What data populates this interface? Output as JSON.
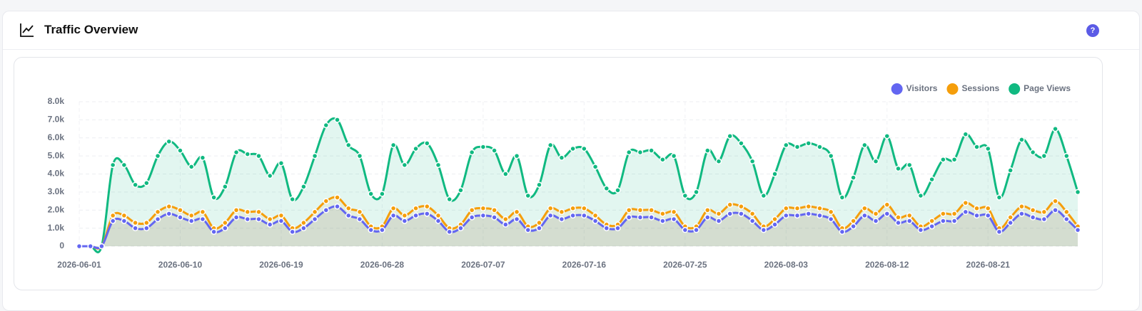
{
  "help_icon": "?",
  "chart_data": {
    "type": "area",
    "title": "Traffic Overview",
    "categories": [
      "2026-06-01",
      null,
      null,
      null,
      null,
      null,
      null,
      null,
      null,
      "2026-06-10",
      null,
      null,
      null,
      null,
      null,
      null,
      null,
      null,
      "2026-06-19",
      null,
      null,
      null,
      null,
      null,
      null,
      null,
      null,
      "2026-06-28",
      null,
      null,
      null,
      null,
      null,
      null,
      null,
      null,
      "2026-07-07",
      null,
      null,
      null,
      null,
      null,
      null,
      null,
      null,
      "2026-07-16",
      null,
      null,
      null,
      null,
      null,
      null,
      null,
      null,
      "2026-07-25",
      null,
      null,
      null,
      null,
      null,
      null,
      null,
      null,
      "2026-08-03",
      null,
      null,
      null,
      null,
      null,
      null,
      null,
      null,
      "2026-08-12",
      null,
      null,
      null,
      null,
      null,
      null,
      null,
      null,
      "2026-08-21",
      null,
      null,
      null,
      null,
      null,
      null,
      null,
      null
    ],
    "series": [
      {
        "name": "Visitors",
        "color": "#6366f1",
        "values": [
          0,
          0,
          0,
          1400,
          1400,
          1000,
          1000,
          1500,
          1800,
          1600,
          1400,
          1500,
          800,
          1000,
          1600,
          1500,
          1500,
          1200,
          1400,
          800,
          1000,
          1500,
          2000,
          2200,
          1700,
          1500,
          900,
          900,
          1700,
          1400,
          1700,
          1800,
          1400,
          800,
          1000,
          1600,
          1700,
          1600,
          1200,
          1500,
          900,
          1000,
          1700,
          1500,
          1700,
          1700,
          1400,
          1000,
          1000,
          1600,
          1600,
          1600,
          1400,
          1500,
          900,
          900,
          1600,
          1400,
          1800,
          1800,
          1400,
          900,
          1200,
          1700,
          1700,
          1800,
          1700,
          1500,
          800,
          1100,
          1700,
          1400,
          1800,
          1300,
          1400,
          900,
          1100,
          1400,
          1400,
          1900,
          1700,
          1700,
          800,
          1300,
          1800,
          1600,
          1500,
          2000,
          1500,
          900
        ]
      },
      {
        "name": "Sessions",
        "color": "#f59e0b",
        "values": [
          0,
          0,
          0,
          1700,
          1700,
          1300,
          1300,
          1900,
          2200,
          2000,
          1700,
          1900,
          1000,
          1300,
          2000,
          1900,
          1900,
          1500,
          1700,
          1000,
          1300,
          1900,
          2500,
          2700,
          2100,
          1900,
          1100,
          1100,
          2100,
          1700,
          2100,
          2200,
          1700,
          1000,
          1200,
          2000,
          2100,
          2000,
          1500,
          1900,
          1100,
          1300,
          2100,
          1900,
          2100,
          2100,
          1700,
          1200,
          1200,
          2000,
          2000,
          2000,
          1800,
          1900,
          1100,
          1100,
          2000,
          1800,
          2300,
          2200,
          1800,
          1100,
          1500,
          2100,
          2100,
          2200,
          2100,
          1900,
          1000,
          1400,
          2100,
          1800,
          2300,
          1600,
          1700,
          1100,
          1400,
          1800,
          1800,
          2400,
          2100,
          2100,
          1000,
          1600,
          2200,
          2000,
          1900,
          2500,
          1900,
          1100
        ]
      },
      {
        "name": "Page Views",
        "color": "#10b981",
        "values": [
          0,
          0,
          0,
          4500,
          4500,
          3400,
          3500,
          5000,
          5800,
          5300,
          4400,
          4900,
          2700,
          3300,
          5200,
          5100,
          5000,
          3900,
          4600,
          2600,
          3300,
          5000,
          6700,
          7000,
          5600,
          5000,
          2900,
          2900,
          5600,
          4500,
          5400,
          5700,
          4500,
          2600,
          3100,
          5200,
          5500,
          5300,
          4000,
          5000,
          2800,
          3400,
          5600,
          4900,
          5400,
          5400,
          4400,
          3200,
          3100,
          5200,
          5200,
          5300,
          4800,
          5000,
          2800,
          3000,
          5300,
          4700,
          6100,
          5700,
          4700,
          2800,
          4000,
          5600,
          5500,
          5700,
          5500,
          5000,
          2700,
          3800,
          5600,
          4700,
          6100,
          4300,
          4500,
          2800,
          3700,
          4800,
          4800,
          6200,
          5500,
          5400,
          2700,
          4200,
          5900,
          5200,
          5000,
          6500,
          5000,
          3000
        ]
      }
    ],
    "ylim": [
      0,
      8000
    ],
    "yticks": [
      0,
      {
        "value": 1000,
        "label": "1.0k"
      },
      {
        "value": 2000,
        "label": "2.0k"
      },
      {
        "value": 3000,
        "label": "3.0k"
      },
      {
        "value": 4000,
        "label": "4.0k"
      },
      {
        "value": 5000,
        "label": "5.0k"
      },
      {
        "value": 6000,
        "label": "6.0k"
      },
      {
        "value": 7000,
        "label": "7.0k"
      },
      {
        "value": 8000,
        "label": "8.0k"
      }
    ],
    "grid": true,
    "legend": "top-right"
  }
}
